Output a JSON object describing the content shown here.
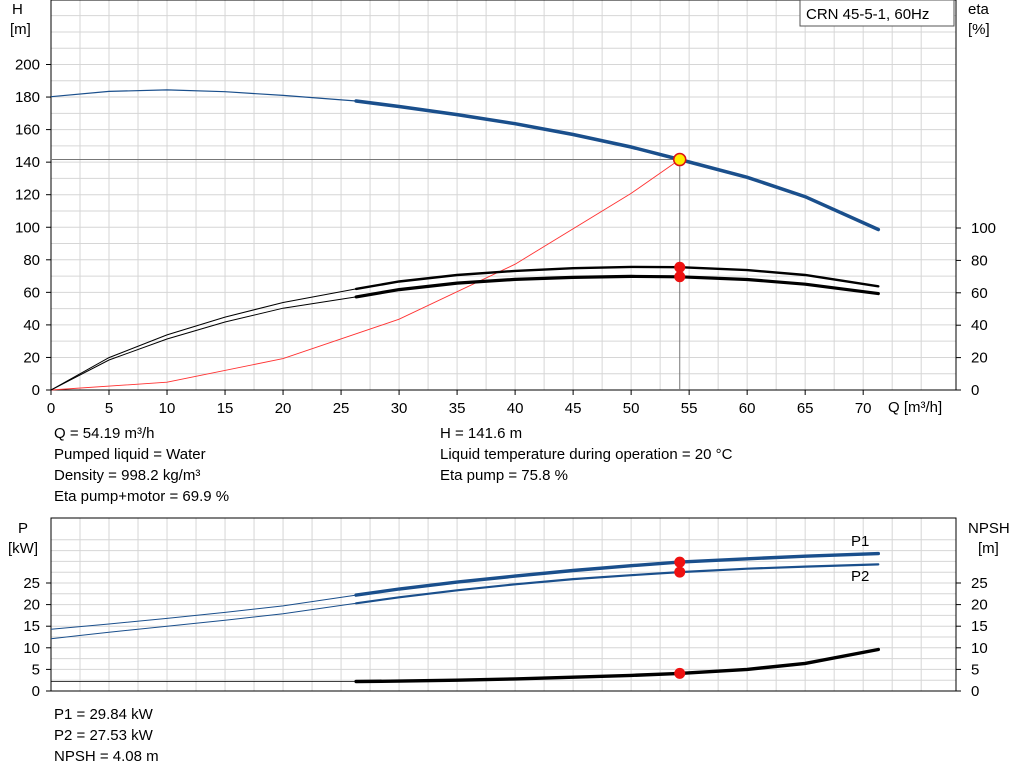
{
  "chart_data": [
    {
      "type": "line",
      "title": "CRN 45-5-1, 60Hz",
      "xlabel": "Q [m³/h]",
      "ylabel_left": [
        "H",
        "[m]"
      ],
      "ylabel_right": [
        "eta",
        "[%]"
      ],
      "xlim": [
        0,
        78
      ],
      "ylim_left": [
        0,
        230
      ],
      "ylim_right": [
        0,
        100
      ],
      "x_ticks": [
        0,
        5,
        10,
        15,
        20,
        25,
        30,
        35,
        40,
        45,
        50,
        55,
        60,
        65,
        70
      ],
      "y_ticks_left": [
        0,
        20,
        40,
        60,
        80,
        100,
        120,
        140,
        160,
        180,
        200
      ],
      "y_ticks_right": [
        0,
        20,
        40,
        60,
        80,
        100
      ],
      "grid": true,
      "series": [
        {
          "name": "",
          "axis": "left",
          "color": "#1a4f8c",
          "x": [
            0,
            5,
            10,
            15,
            20,
            26.3,
            30,
            35,
            40,
            45,
            50,
            54.19,
            60,
            65,
            71.3
          ],
          "y": [
            180.2,
            183.5,
            184.4,
            183.3,
            181,
            177.6,
            174.2,
            169.2,
            163.6,
            157,
            149.3,
            141.6,
            130.7,
            118.8,
            98.6
          ]
        },
        {
          "name": "",
          "axis": "right",
          "color": "#000000",
          "x": [
            0,
            5,
            10,
            15,
            20,
            26.3,
            30,
            35,
            40,
            45,
            50,
            54.19,
            60,
            65,
            71.3
          ],
          "y": [
            0,
            20,
            34,
            45,
            54,
            62.4,
            67,
            71,
            73.5,
            75.2,
            76,
            75.8,
            74,
            71,
            64
          ]
        },
        {
          "name": "",
          "axis": "right",
          "color": "#000000",
          "x": [
            0,
            5,
            10,
            15,
            20,
            26.3,
            30,
            35,
            40,
            45,
            50,
            54.19,
            60,
            65,
            71.3
          ],
          "y": [
            0,
            18.5,
            31.5,
            42,
            50.5,
            57.5,
            62,
            66,
            68.3,
            69.5,
            70.1,
            69.9,
            68.2,
            65.3,
            59.5
          ]
        },
        {
          "name": "",
          "axis": "left",
          "color": "#ff3333",
          "x": [
            0,
            10,
            20,
            30,
            40,
            50,
            54.19
          ],
          "y": [
            0,
            4.8,
            19.3,
            43.5,
            77.3,
            120.8,
            141.6
          ]
        }
      ],
      "operating_point": {
        "q": 54.19,
        "h": 141.6,
        "eta_pump": 75.8,
        "eta_total": 69.9
      }
    },
    {
      "type": "line",
      "xlim": [
        0,
        78
      ],
      "ylabel_left": [
        "P",
        "[kW]"
      ],
      "ylabel_right": [
        "NPSH",
        "[m]"
      ],
      "ylim": [
        0,
        35
      ],
      "y_ticks": [
        0,
        5,
        10,
        15,
        20,
        25
      ],
      "grid": true,
      "series": [
        {
          "name": "P1",
          "color": "#1a4f8c",
          "x": [
            0,
            5,
            10,
            15,
            20,
            26.3,
            30,
            35,
            40,
            45,
            50,
            54.19,
            60,
            65,
            71.3
          ],
          "y": [
            14.3,
            15.5,
            16.8,
            18.2,
            19.7,
            22.2,
            23.6,
            25.2,
            26.6,
            27.9,
            29.0,
            29.84,
            30.6,
            31.2,
            31.8
          ]
        },
        {
          "name": "P2",
          "color": "#1a4f8c",
          "x": [
            0,
            5,
            10,
            15,
            20,
            26.3,
            30,
            35,
            40,
            45,
            50,
            54.19,
            60,
            65,
            71.3
          ],
          "y": [
            12.1,
            13.6,
            15.0,
            16.4,
            17.9,
            20.3,
            21.7,
            23.3,
            24.7,
            25.9,
            26.8,
            27.53,
            28.3,
            28.8,
            29.3
          ]
        },
        {
          "name": "",
          "color": "#000000",
          "x": [
            0,
            26.3,
            30,
            35,
            40,
            45,
            50,
            54.19,
            60,
            65,
            71.3
          ],
          "y": [
            2.2,
            2.2,
            2.3,
            2.5,
            2.8,
            3.2,
            3.6,
            4.08,
            5.0,
            6.4,
            9.6
          ]
        }
      ],
      "operating_points": [
        {
          "q": 54.19,
          "p": 29.84
        },
        {
          "q": 54.19,
          "p": 27.53
        },
        {
          "q": 54.19,
          "npsh": 4.08
        }
      ]
    }
  ],
  "info_top": {
    "left": [
      "Q = 54.19 m³/h",
      "Pumped liquid = Water",
      "Density = 998.2 kg/m³",
      "Eta pump+motor = 69.9 %"
    ],
    "right": [
      "H = 141.6 m",
      "Liquid temperature during operation = 20 °C",
      "Eta pump = 75.8 %"
    ]
  },
  "info_bottom": [
    "P1 = 29.84 kW",
    "P2 = 27.53 kW",
    "NPSH = 4.08 m"
  ]
}
